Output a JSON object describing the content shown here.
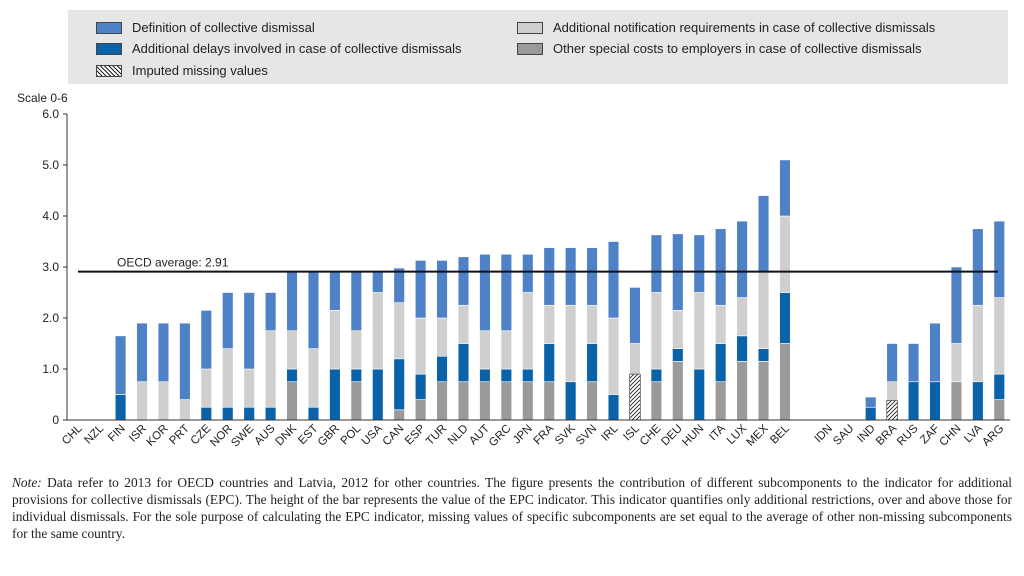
{
  "colors": {
    "definition": "#4f81c7",
    "delays": "#0a63a8",
    "notification": "#cfcfcf",
    "other_costs": "#9a9a9a",
    "avg_line": "#111111",
    "grid": "#cfcfcf"
  },
  "legend": {
    "definition": "Definition of collective dismissal",
    "delays": "Additional delays involved in case of collective dismissals",
    "imputed": "Imputed missing values",
    "notification": "Additional notification requirements in case of collective dismissals",
    "other_costs": "Other special costs to employers in case of collective dismissals"
  },
  "note": {
    "label": "Note:",
    "text": "Data refer to 2013 for OECD countries and Latvia, 2012 for other countries. The figure presents the contribution of different subcomponents to the indicator for additional provisions for collective dismissals (EPC). The height of the bar represents the value of the EPC indicator. This indicator quantifies only additional restrictions, over and above those for individual dismissals. For the sole purpose of calculating the EPC indicator, missing values of specific subcomponents are set equal to the average of other non-missing subcomponents for the same country."
  },
  "chart_data": {
    "type": "bar",
    "stacked": true,
    "ylabel": "Scale 0-6",
    "ylim": [
      0,
      6
    ],
    "yticks": [
      "0",
      "1.0",
      "2.0",
      "3.0",
      "4.0",
      "5.0",
      "6.0"
    ],
    "grid": false,
    "legend_position": "top",
    "reference_line": {
      "label": "OECD average: 2.91",
      "value": 2.91
    },
    "categories": [
      "CHL",
      "NZL",
      "FIN",
      "ISR",
      "KOR",
      "PRT",
      "CZE",
      "NOR",
      "SWE",
      "AUS",
      "DNK",
      "EST",
      "GBR",
      "POL",
      "USA",
      "CAN",
      "ESP",
      "TUR",
      "NLD",
      "AUT",
      "GRC",
      "JPN",
      "FRA",
      "SVK",
      "SVN",
      "IRL",
      "ISL",
      "CHE",
      "DEU",
      "HUN",
      "ITA",
      "LUX",
      "MEX",
      "BEL",
      "",
      "IDN",
      "SAU",
      "IND",
      "BRA",
      "RUS",
      "ZAF",
      "CHN",
      "LVA",
      "ARG"
    ],
    "series": [
      {
        "key": "other_costs",
        "values": [
          0,
          0,
          0,
          0,
          0,
          0,
          0,
          0,
          0,
          0,
          0.75,
          0,
          0,
          0.75,
          0,
          0.2,
          0.4,
          0.75,
          0.75,
          0.75,
          0.75,
          0.75,
          0.75,
          0,
          0.75,
          0,
          0,
          0.75,
          1.15,
          0,
          0.75,
          1.15,
          1.15,
          1.5,
          0,
          0,
          0,
          0,
          0,
          0,
          0,
          0.75,
          0,
          0.4
        ]
      },
      {
        "key": "delays",
        "values": [
          0,
          0,
          0.5,
          0,
          0,
          0,
          0.25,
          0.25,
          0.25,
          0.25,
          0.25,
          0.25,
          1.0,
          0.25,
          1.0,
          1.0,
          0.5,
          0.5,
          0.75,
          0.25,
          0.25,
          0.25,
          0.75,
          0.75,
          0.75,
          0.5,
          0,
          0.25,
          0.25,
          1.0,
          0.75,
          0.5,
          0.25,
          1.0,
          0,
          0,
          0,
          0.25,
          0,
          0.75,
          0.75,
          0,
          0.75,
          0.5
        ]
      },
      {
        "key": "notification",
        "values": [
          0,
          0,
          0,
          0.75,
          0.75,
          0.4,
          0.75,
          1.15,
          0.75,
          1.5,
          0.75,
          1.15,
          1.15,
          0.75,
          1.5,
          1.1,
          1.1,
          0.75,
          0.75,
          0.75,
          0.75,
          1.5,
          0.75,
          1.5,
          0.75,
          1.5,
          1.5,
          1.5,
          0.75,
          1.5,
          0.75,
          0.75,
          1.5,
          1.5,
          0,
          0,
          0,
          0,
          0.75,
          0,
          0,
          0.75,
          1.5,
          1.5
        ]
      },
      {
        "key": "definition",
        "values": [
          0,
          0,
          1.15,
          1.15,
          1.15,
          1.5,
          1.15,
          1.1,
          1.5,
          0.75,
          1.15,
          1.5,
          0.75,
          1.15,
          0.4,
          0.68,
          1.13,
          1.13,
          0.95,
          1.5,
          1.5,
          0.75,
          1.13,
          1.13,
          1.13,
          1.5,
          1.1,
          1.13,
          1.5,
          1.13,
          1.5,
          1.5,
          1.5,
          1.1,
          0,
          0,
          0,
          0.2,
          0.75,
          0.75,
          1.15,
          1.5,
          1.5,
          1.5
        ]
      }
    ],
    "imputed": [
      {
        "category": "ISL",
        "value": 0.9
      },
      {
        "category": "BRA",
        "value": 0.38
      }
    ]
  }
}
